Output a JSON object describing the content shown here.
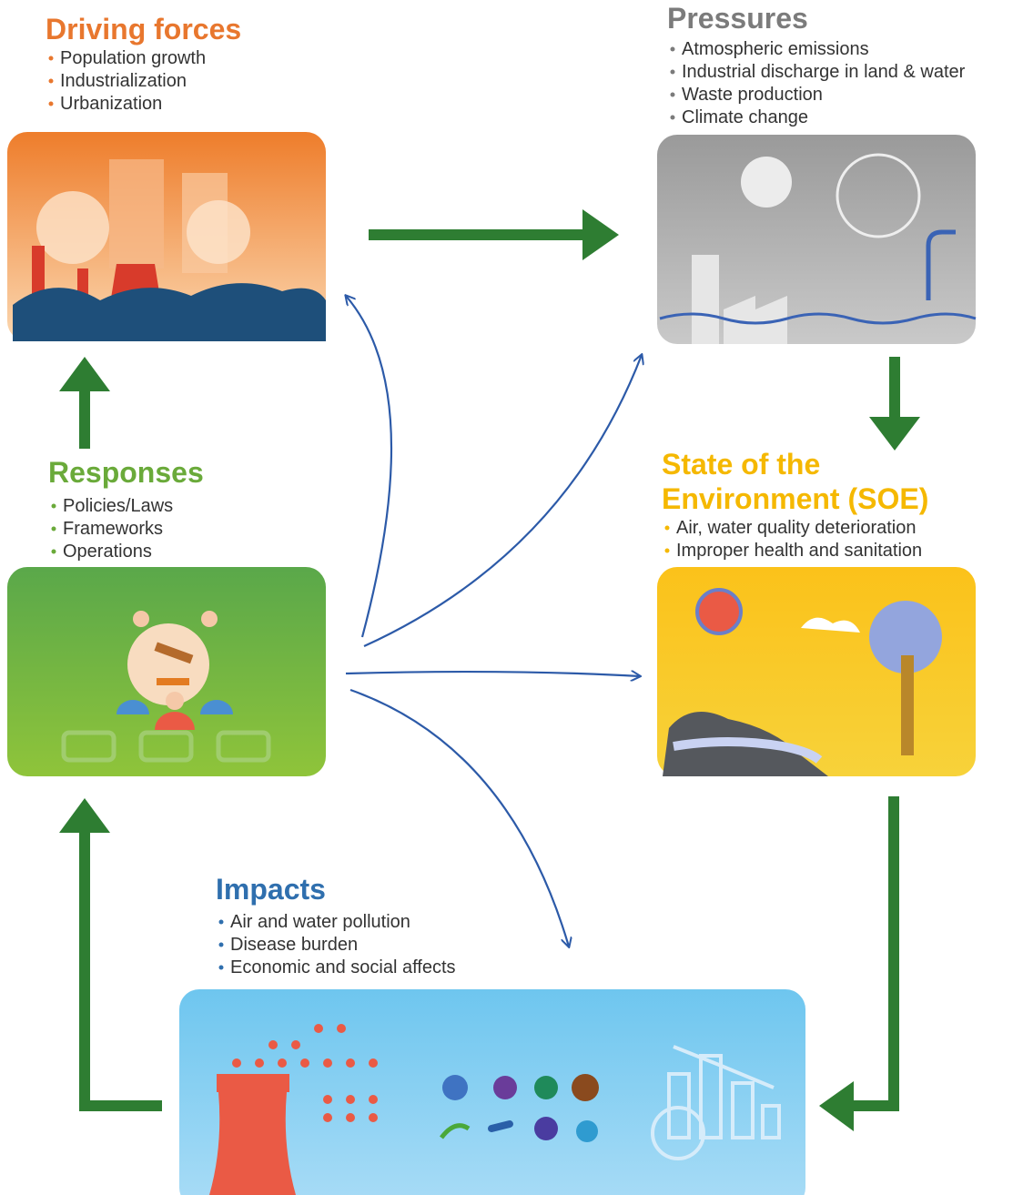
{
  "nodes": [
    {
      "title": [
        "Driving forces"
      ],
      "items": [
        "Population growth",
        "Industrialization",
        "Urbanization"
      ]
    },
    {
      "title": [
        "Pressures"
      ],
      "items": [
        "Atmospheric emissions",
        "Industrial discharge in land & water",
        "Waste production",
        "Climate change"
      ]
    },
    {
      "title": [
        "State of the",
        "Environment (SOE)"
      ],
      "items": [
        "Air, water quality deterioration",
        "Improper health and sanitation"
      ]
    },
    {
      "title": [
        "Impacts"
      ],
      "items": [
        "Air and water pollution",
        "Disease burden",
        "Economic and social affects"
      ]
    },
    {
      "title": [
        "Responses"
      ],
      "items": [
        "Policies/Laws",
        "Frameworks",
        "Operations"
      ]
    }
  ]
}
